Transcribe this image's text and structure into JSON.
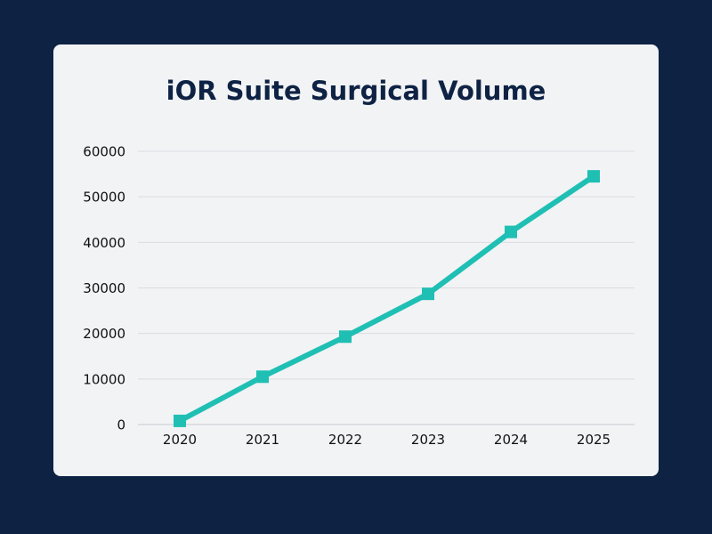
{
  "chart_data": {
    "type": "line",
    "title": "iOR Suite Surgical Volume",
    "xlabel": "",
    "ylabel": "",
    "categories": [
      "2020",
      "2021",
      "2022",
      "2023",
      "2024",
      "2025"
    ],
    "series": [
      {
        "name": "Surgical Volume",
        "values": [
          800,
          10500,
          19300,
          28700,
          42300,
          54500
        ],
        "color": "#1fbfb4"
      }
    ],
    "ylim": [
      0,
      60000
    ],
    "yticks": [
      0,
      10000,
      20000,
      30000,
      40000,
      50000,
      60000
    ],
    "grid": true,
    "marker": "square"
  },
  "colors": {
    "background": "#0e2244",
    "card": "#f1f3f5",
    "title": "#0e2244",
    "gridline": "#d9dde2",
    "axis": "#c6cbd1"
  }
}
